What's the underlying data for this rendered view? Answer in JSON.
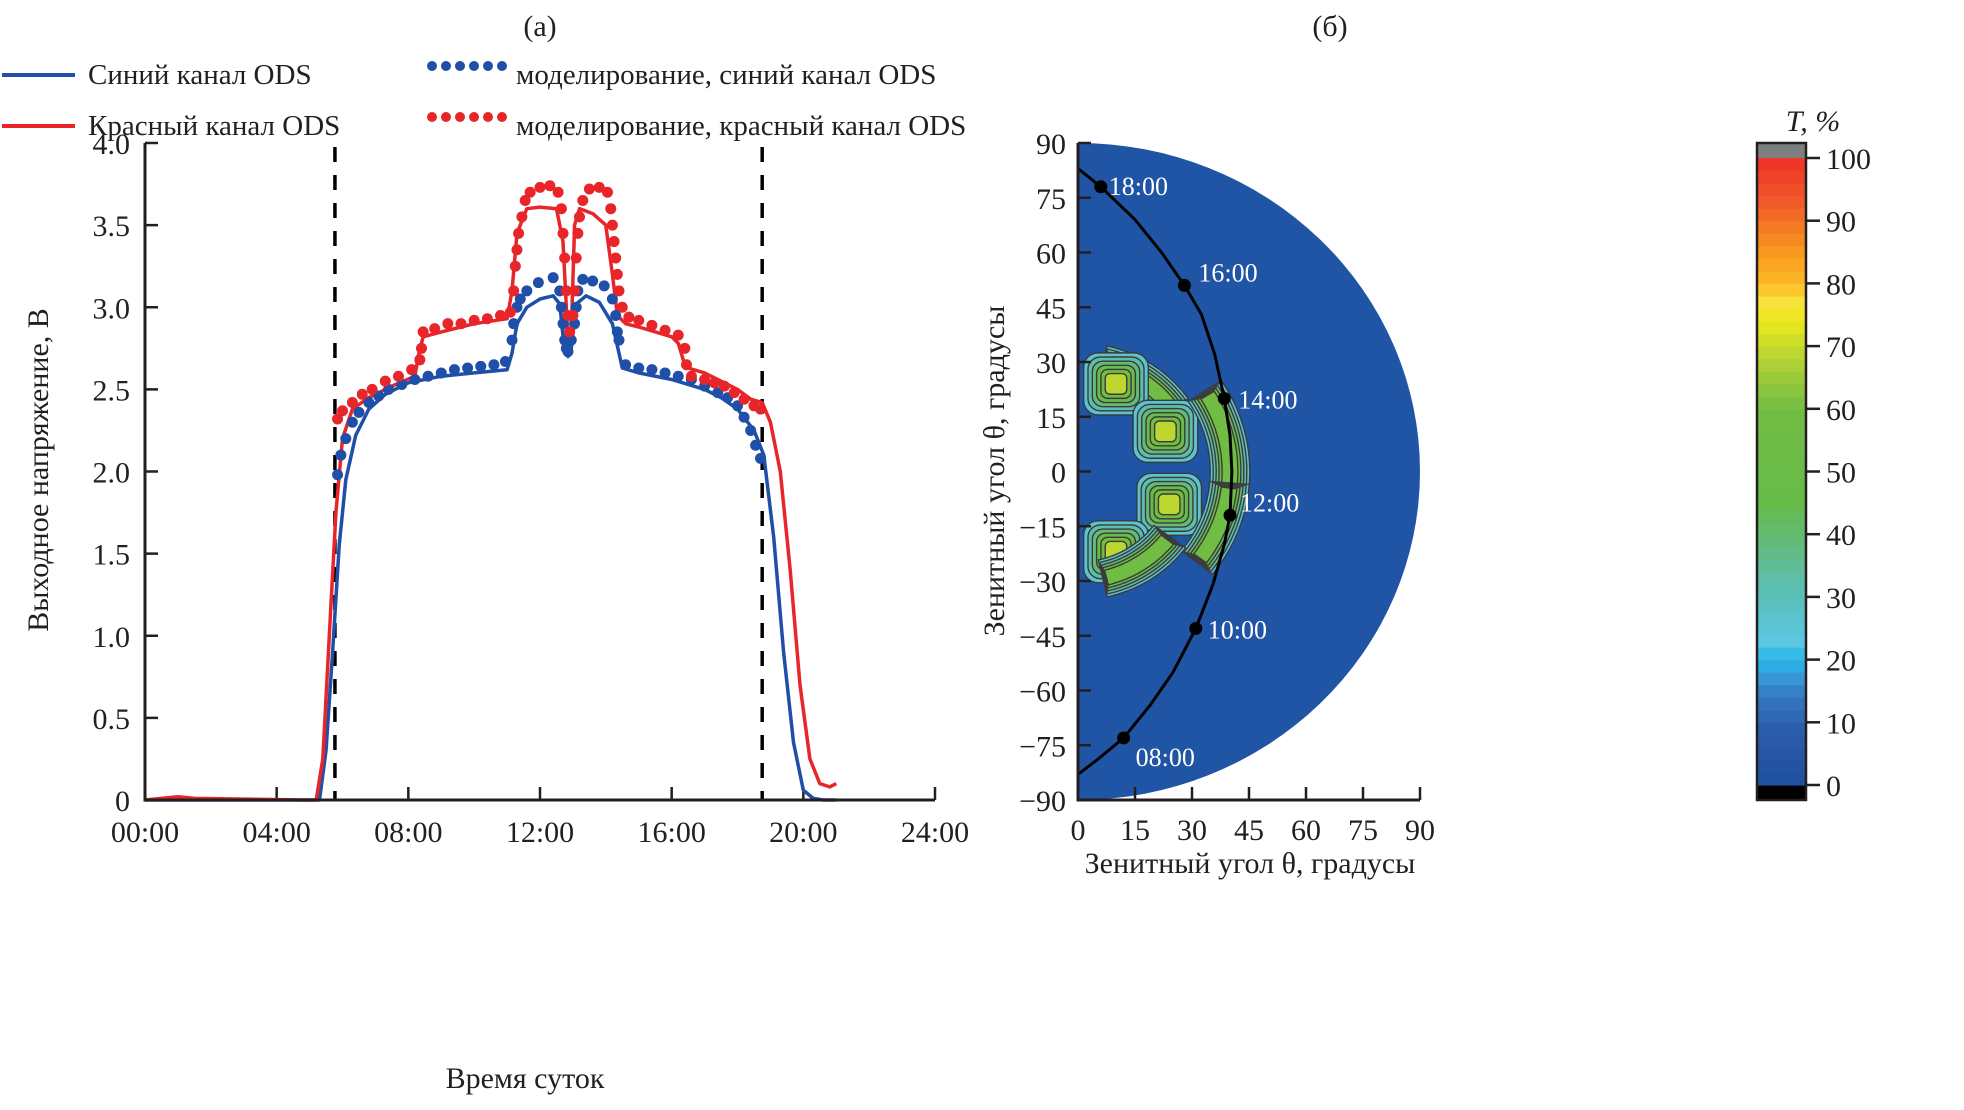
{
  "chart_data": [
    {
      "type": "line",
      "panel_label": "(а)",
      "title": "",
      "xlabel": "Время суток",
      "ylabel": "Выходное напряжение, В",
      "xlim_hours": [
        0,
        24
      ],
      "ylim": [
        0,
        4.0
      ],
      "x_ticks": [
        "00:00",
        "04:00",
        "08:00",
        "12:00",
        "16:00",
        "20:00",
        "24:00"
      ],
      "y_ticks": [
        "0",
        "0.5",
        "1.0",
        "1.5",
        "2.0",
        "2.5",
        "3.0",
        "3.5",
        "4.0"
      ],
      "grid": false,
      "legend_position": "top",
      "legend": [
        {
          "label": "Синий канал ODS",
          "style": "solid",
          "color": "#1f4fa8"
        },
        {
          "label": "Красный канал ODS",
          "style": "solid",
          "color": "#e8262a"
        },
        {
          "label": "моделирование, синий канал ODS",
          "style": "dotted",
          "color": "#1f4fa8"
        },
        {
          "label": "моделирование, красный канал ODS",
          "style": "dotted",
          "color": "#e8262a"
        }
      ],
      "vertical_markers_hours": [
        5.77,
        18.75
      ],
      "series": [
        {
          "name": "Синий канал ODS",
          "style": "solid",
          "color": "#1f4fa8",
          "x": [
            0,
            5.0,
            5.3,
            5.5,
            5.7,
            5.9,
            6.1,
            6.4,
            6.8,
            7.3,
            8.0,
            9.0,
            10.0,
            11.0,
            11.15,
            11.3,
            11.6,
            12.0,
            12.4,
            12.6,
            12.75,
            12.85,
            12.95,
            13.1,
            13.4,
            13.8,
            14.2,
            14.5,
            15.0,
            16.0,
            17.0,
            17.5,
            18.0,
            18.5,
            18.8,
            19.1,
            19.4,
            19.7,
            20.0,
            20.3,
            20.6,
            21.0
          ],
          "y": [
            0,
            0,
            0,
            0.3,
            0.9,
            1.55,
            1.95,
            2.22,
            2.38,
            2.47,
            2.54,
            2.58,
            2.6,
            2.62,
            2.72,
            2.9,
            3.0,
            3.05,
            3.07,
            3.02,
            2.72,
            2.7,
            2.75,
            3.02,
            3.07,
            3.03,
            2.9,
            2.63,
            2.6,
            2.56,
            2.5,
            2.45,
            2.38,
            2.25,
            2.1,
            1.6,
            0.9,
            0.35,
            0.06,
            0.01,
            0,
            0
          ]
        },
        {
          "name": "Красный канал ODS",
          "style": "solid",
          "color": "#e8262a",
          "x": [
            0,
            0.5,
            1.0,
            1.5,
            4.8,
            5.2,
            5.4,
            5.6,
            5.8,
            6.0,
            6.3,
            6.8,
            7.5,
            8.2,
            8.3,
            8.45,
            9.0,
            10.0,
            11.0,
            11.15,
            11.3,
            11.6,
            12.0,
            12.5,
            12.7,
            12.85,
            12.95,
            13.05,
            13.2,
            13.6,
            14.0,
            14.2,
            14.35,
            14.6,
            15.0,
            16.0,
            16.2,
            16.35,
            16.5,
            17.0,
            18.0,
            18.4,
            18.75,
            19.0,
            19.3,
            19.6,
            19.9,
            20.2,
            20.5,
            20.8,
            21.0
          ],
          "y": [
            0,
            0.01,
            0.02,
            0.01,
            0,
            0,
            0.25,
            1.0,
            1.75,
            2.2,
            2.38,
            2.45,
            2.52,
            2.58,
            2.7,
            2.82,
            2.85,
            2.9,
            2.93,
            3.1,
            3.45,
            3.6,
            3.61,
            3.6,
            3.4,
            2.8,
            2.85,
            3.5,
            3.6,
            3.57,
            3.5,
            3.2,
            2.95,
            2.9,
            2.88,
            2.82,
            2.78,
            2.68,
            2.63,
            2.6,
            2.5,
            2.44,
            2.42,
            2.3,
            2.0,
            1.4,
            0.7,
            0.25,
            0.1,
            0.08,
            0.1
          ]
        },
        {
          "name": "моделирование, синий канал ODS",
          "style": "dotted",
          "color": "#1f4fa8",
          "x": [
            5.85,
            5.95,
            6.1,
            6.3,
            6.5,
            6.8,
            7.1,
            7.4,
            7.8,
            8.2,
            8.6,
            9.0,
            9.4,
            9.8,
            10.2,
            10.6,
            10.95,
            11.15,
            11.2,
            11.3,
            11.4,
            11.6,
            11.95,
            12.4,
            12.6,
            12.65,
            12.7,
            12.75,
            12.8,
            12.85,
            12.95,
            13.05,
            13.1,
            13.15,
            13.3,
            13.6,
            13.95,
            14.2,
            14.3,
            14.35,
            14.4,
            14.6,
            15.0,
            15.4,
            15.8,
            16.2,
            16.6,
            17.0,
            17.4,
            17.7,
            18.0,
            18.2,
            18.4,
            18.55,
            18.7
          ],
          "y": [
            1.98,
            2.1,
            2.2,
            2.3,
            2.36,
            2.42,
            2.46,
            2.5,
            2.53,
            2.56,
            2.58,
            2.6,
            2.62,
            2.63,
            2.64,
            2.65,
            2.67,
            2.8,
            2.9,
            3.0,
            3.05,
            3.1,
            3.15,
            3.18,
            3.1,
            3.0,
            2.9,
            2.8,
            2.75,
            2.73,
            2.8,
            2.9,
            3.0,
            3.1,
            3.17,
            3.16,
            3.13,
            3.05,
            2.95,
            2.85,
            2.8,
            2.65,
            2.63,
            2.62,
            2.6,
            2.58,
            2.56,
            2.52,
            2.48,
            2.45,
            2.4,
            2.33,
            2.25,
            2.16,
            2.08
          ]
        },
        {
          "name": "моделирование, красный канал ODS",
          "style": "dotted",
          "color": "#e8262a",
          "x": [
            5.85,
            6.0,
            6.3,
            6.6,
            6.9,
            7.3,
            7.7,
            8.1,
            8.35,
            8.4,
            8.45,
            8.8,
            9.2,
            9.6,
            10.0,
            10.4,
            10.8,
            11.1,
            11.2,
            11.25,
            11.3,
            11.35,
            11.45,
            11.55,
            11.7,
            12.0,
            12.3,
            12.55,
            12.65,
            12.7,
            12.75,
            12.8,
            12.85,
            12.9,
            13.0,
            13.05,
            13.1,
            13.15,
            13.2,
            13.3,
            13.5,
            13.8,
            14.05,
            14.15,
            14.2,
            14.25,
            14.3,
            14.35,
            14.4,
            14.5,
            14.7,
            15.0,
            15.4,
            15.8,
            16.2,
            16.4,
            16.45,
            16.6,
            17.0,
            17.3,
            17.6,
            17.9,
            18.2,
            18.5,
            18.7
          ],
          "y": [
            2.32,
            2.37,
            2.42,
            2.47,
            2.5,
            2.55,
            2.58,
            2.62,
            2.68,
            2.75,
            2.85,
            2.87,
            2.9,
            2.9,
            2.92,
            2.93,
            2.95,
            2.97,
            3.1,
            3.25,
            3.35,
            3.45,
            3.55,
            3.65,
            3.7,
            3.73,
            3.74,
            3.7,
            3.6,
            3.45,
            3.3,
            3.1,
            2.95,
            2.85,
            2.95,
            3.1,
            3.3,
            3.45,
            3.55,
            3.65,
            3.72,
            3.73,
            3.7,
            3.6,
            3.5,
            3.4,
            3.3,
            3.2,
            3.1,
            3.0,
            2.94,
            2.92,
            2.89,
            2.86,
            2.83,
            2.75,
            2.65,
            2.58,
            2.56,
            2.54,
            2.52,
            2.48,
            2.44,
            2.4,
            2.38
          ]
        }
      ]
    },
    {
      "type": "heatmap",
      "subtype": "polar-contour",
      "panel_label": "(б)",
      "title": "",
      "xlabel": "Зенитный угол θ, градусы",
      "ylabel": "Зенитный угол θ, градусы",
      "xlim": [
        0,
        90
      ],
      "ylim": [
        -90,
        90
      ],
      "x_ticks": [
        "0",
        "15",
        "30",
        "45",
        "60",
        "75",
        "90"
      ],
      "y_ticks": [
        "−90",
        "−75",
        "−60",
        "−45",
        "−30",
        "−15",
        "0",
        "15",
        "30",
        "45",
        "60",
        "75",
        "90"
      ],
      "background_value_percent": 5,
      "colorbar": {
        "title": "T, %",
        "ticks": [
          "0",
          "10",
          "20",
          "30",
          "40",
          "50",
          "60",
          "70",
          "80",
          "90",
          "100"
        ],
        "range": [
          0,
          100
        ],
        "overflow_color": "#7b7f80",
        "underflow_color": "#000000",
        "stops": [
          {
            "v": 0,
            "c": "#1f4fa0"
          },
          {
            "v": 8,
            "c": "#2a5aa8"
          },
          {
            "v": 14,
            "c": "#3277bd"
          },
          {
            "v": 18,
            "c": "#3aa0db"
          },
          {
            "v": 20,
            "c": "#22b8ec"
          },
          {
            "v": 23,
            "c": "#5bc8e0"
          },
          {
            "v": 30,
            "c": "#5bbfbb"
          },
          {
            "v": 38,
            "c": "#63bb82"
          },
          {
            "v": 45,
            "c": "#66bb48"
          },
          {
            "v": 60,
            "c": "#72bd44"
          },
          {
            "v": 68,
            "c": "#b5d334"
          },
          {
            "v": 74,
            "c": "#ece81c"
          },
          {
            "v": 77,
            "c": "#f6e33a"
          },
          {
            "v": 80,
            "c": "#fdb927"
          },
          {
            "v": 86,
            "c": "#f6921e"
          },
          {
            "v": 92,
            "c": "#f1612a"
          },
          {
            "v": 100,
            "c": "#ee3129"
          }
        ]
      },
      "hotspots": [
        {
          "shape": "arc",
          "theta_r": 30,
          "phi_from": 38,
          "phi_to": 74,
          "peak_percent": 62
        },
        {
          "shape": "blob",
          "x": 10,
          "y": 24,
          "peak_percent": 72
        },
        {
          "shape": "blob",
          "x": 23,
          "y": 11,
          "peak_percent": 72
        },
        {
          "shape": "arc",
          "theta_r": 40,
          "phi_from": -10,
          "phi_to": 30,
          "peak_percent": 60
        },
        {
          "shape": "blob",
          "x": 24,
          "y": -9,
          "peak_percent": 72
        },
        {
          "shape": "arc",
          "theta_r": 40,
          "phi_from": -35,
          "phi_to": -8,
          "peak_percent": 60
        },
        {
          "shape": "blob",
          "x": 10,
          "y": -22,
          "peak_percent": 72
        },
        {
          "shape": "arc",
          "theta_r": 30,
          "phi_from": -74,
          "phi_to": -40,
          "peak_percent": 62
        }
      ],
      "sun_path": {
        "points": [
          {
            "time": "08:00",
            "x": 12,
            "y": -73
          },
          {
            "time": "10:00",
            "x": 31,
            "y": -43
          },
          {
            "time": "12:00",
            "x": 40,
            "y": -12
          },
          {
            "time": "14:00",
            "x": 38.5,
            "y": 20
          },
          {
            "time": "16:00",
            "x": 28,
            "y": 51
          },
          {
            "time": "18:00",
            "x": 6,
            "y": 78
          }
        ],
        "curve": [
          [
            0,
            -83
          ],
          [
            5,
            -79
          ],
          [
            12,
            -73
          ],
          [
            19,
            -64
          ],
          [
            25,
            -55
          ],
          [
            31,
            -43
          ],
          [
            35.5,
            -31
          ],
          [
            38.5,
            -20
          ],
          [
            40,
            -12
          ],
          [
            40.5,
            0
          ],
          [
            40,
            10
          ],
          [
            38.5,
            20
          ],
          [
            36,
            32
          ],
          [
            32.5,
            43
          ],
          [
            28,
            51
          ],
          [
            22,
            60
          ],
          [
            15,
            69
          ],
          [
            6,
            78
          ],
          [
            0,
            83
          ]
        ]
      }
    }
  ]
}
